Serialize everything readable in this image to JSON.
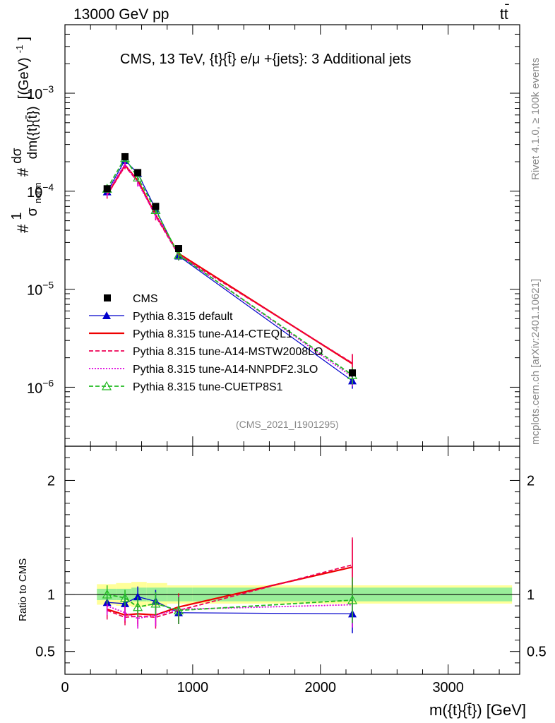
{
  "header": {
    "left": "13000 GeV pp",
    "right_main": "tt",
    "right_bar": "̄"
  },
  "side_labels": {
    "rivet": "Rivet 4.1.0, ≥ 100k events",
    "mcplots": "mcplots.cern.ch [arXiv:2401.10621]"
  },
  "chart_data": {
    "type": "line",
    "title": "CMS, 13 TeV, {t}{t̄} e/μ +{jets}: 3 Additional jets",
    "analysis_id": "(CMS_2021_I1901295)",
    "xlabel": "m({t}{t̄}) [GeV]",
    "ylabel": "#1/σnorm #dσ/dm({t}{t̄}) [(GeV)^-1]",
    "ylabel_parts": {
      "hash1": "#",
      "one": "1",
      "sigma": "σ",
      "norm": "norm",
      "hash2": "#",
      "dsigma": "dσ",
      "dm": "dm({t}{t̄})",
      "units": "[(GeV)",
      "exp": "-1",
      "close": "]"
    },
    "ratio_ylabel": "Ratio to CMS",
    "xlim": [
      0,
      3560
    ],
    "ylim": [
      2.5e-07,
      0.005
    ],
    "ratio_ylim": [
      0.3,
      2.3
    ],
    "x_ticks": [
      {
        "value": 0,
        "label": "0"
      },
      {
        "value": 1000,
        "label": "1000"
      },
      {
        "value": 2000,
        "label": "2000"
      },
      {
        "value": 3000,
        "label": "3000"
      }
    ],
    "y_ticks": [
      {
        "value": 0.001,
        "base": "10",
        "exp": "−3"
      },
      {
        "value": 0.0001,
        "base": "10",
        "exp": "−4"
      },
      {
        "value": 1e-05,
        "base": "10",
        "exp": "−5"
      },
      {
        "value": 1e-06,
        "base": "10",
        "exp": "−6"
      }
    ],
    "ratio_ticks": [
      {
        "value": 0.5,
        "label": "0.5"
      },
      {
        "value": 1,
        "label": "1"
      },
      {
        "value": 2,
        "label": "2"
      }
    ],
    "bins": [
      {
        "low": 250,
        "high": 400
      },
      {
        "low": 400,
        "high": 520
      },
      {
        "low": 520,
        "high": 640
      },
      {
        "low": 640,
        "high": 800
      },
      {
        "low": 800,
        "high": 1000
      },
      {
        "low": 1000,
        "high": 3500
      }
    ],
    "x": [
      330,
      470,
      570,
      710,
      890,
      2250
    ],
    "data": {
      "name": "CMS",
      "values": [
        0.000106,
        0.000225,
        0.000155,
        7e-05,
        2.6e-05,
        1.4e-06
      ],
      "band_inner": [
        0.05,
        0.05,
        0.06,
        0.06,
        0.06,
        0.06
      ],
      "band_outer": [
        0.09,
        0.1,
        0.11,
        0.1,
        0.08,
        0.08
      ]
    },
    "series": [
      {
        "name": "Pythia 8.315 default",
        "color": "#0000cc",
        "style": "solid",
        "marker": "triangle",
        "ratio": [
          0.93,
          0.92,
          0.98,
          0.94,
          0.84,
          0.83
        ],
        "err": [
          0.08,
          0.07,
          0.09,
          0.1,
          0.1,
          0.17
        ]
      },
      {
        "name": "Pythia 8.315 tune-A14-CTEQL1",
        "color": "#ee0000",
        "style": "solid",
        "marker": "none",
        "ratio": [
          0.87,
          0.82,
          0.83,
          0.82,
          0.89,
          1.24
        ],
        "err": [
          0.08,
          0.07,
          0.09,
          0.1,
          0.12,
          0.24
        ]
      },
      {
        "name": "Pythia 8.315 tune-A14-MSTW2008LO",
        "color": "#ee0055",
        "style": "dashed",
        "marker": "none",
        "ratio": [
          0.86,
          0.8,
          0.81,
          0.8,
          0.86,
          1.26
        ],
        "err": [
          0.08,
          0.07,
          0.09,
          0.1,
          0.12,
          0.24
        ]
      },
      {
        "name": "Pythia 8.315 tune-A14-NNPDF2.3LO",
        "color": "#dd00dd",
        "style": "dotted",
        "marker": "none",
        "ratio": [
          0.9,
          0.84,
          0.79,
          0.82,
          0.87,
          0.91
        ],
        "err": [
          0.08,
          0.07,
          0.09,
          0.1,
          0.12,
          0.2
        ]
      },
      {
        "name": "Pythia 8.315 tune-CUETP8S1",
        "color": "#22bb22",
        "style": "dashed",
        "marker": "open-triangle",
        "ratio": [
          1.0,
          0.97,
          0.89,
          0.92,
          0.86,
          0.95
        ],
        "err": [
          0.08,
          0.07,
          0.09,
          0.1,
          0.12,
          0.2
        ]
      }
    ]
  }
}
